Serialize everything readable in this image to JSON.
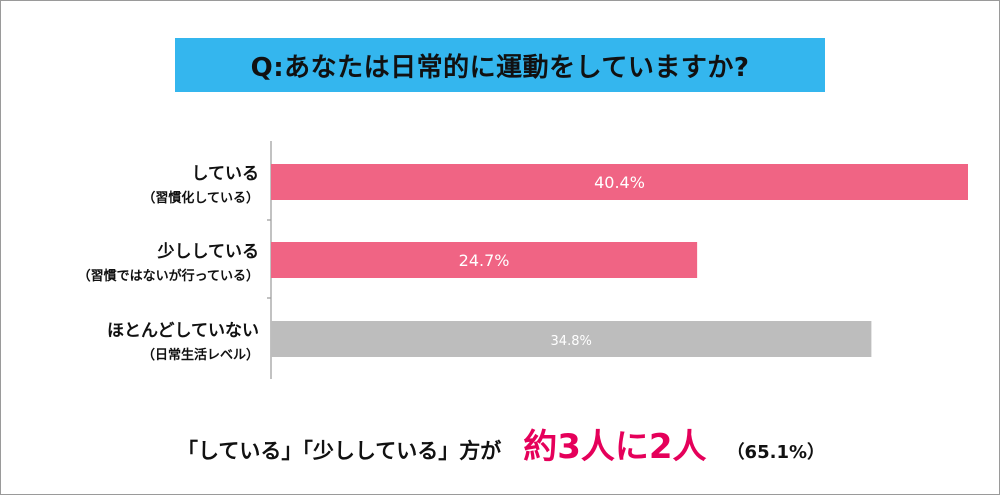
{
  "title": "Q:あなたは日常的に運動をしていますか?",
  "colors": {
    "title_bg": "#34b6ee",
    "bar_pink": "#f06484",
    "bar_gray": "#bdbdbd",
    "highlight": "#e5005a"
  },
  "chart_data": {
    "type": "bar",
    "orientation": "horizontal",
    "categories": [
      {
        "label": "している",
        "sublabel": "（習慣化している）"
      },
      {
        "label": "少ししている",
        "sublabel": "（習慣ではないが行っている）"
      },
      {
        "label": "ほとんどしていない",
        "sublabel": "（日常生活レベル）"
      }
    ],
    "values": [
      40.4,
      24.7,
      34.8
    ],
    "value_labels": [
      "40.4%",
      "24.7%",
      "34.8%"
    ],
    "bar_colors": [
      "#f06484",
      "#f06484",
      "#bdbdbd"
    ],
    "xlim": [
      0,
      40.4
    ],
    "grid": false,
    "legend": "none"
  },
  "footer": {
    "lead": "「している」「少ししている」方が",
    "highlight": "約3人に2人",
    "note": "（65.1%）"
  }
}
